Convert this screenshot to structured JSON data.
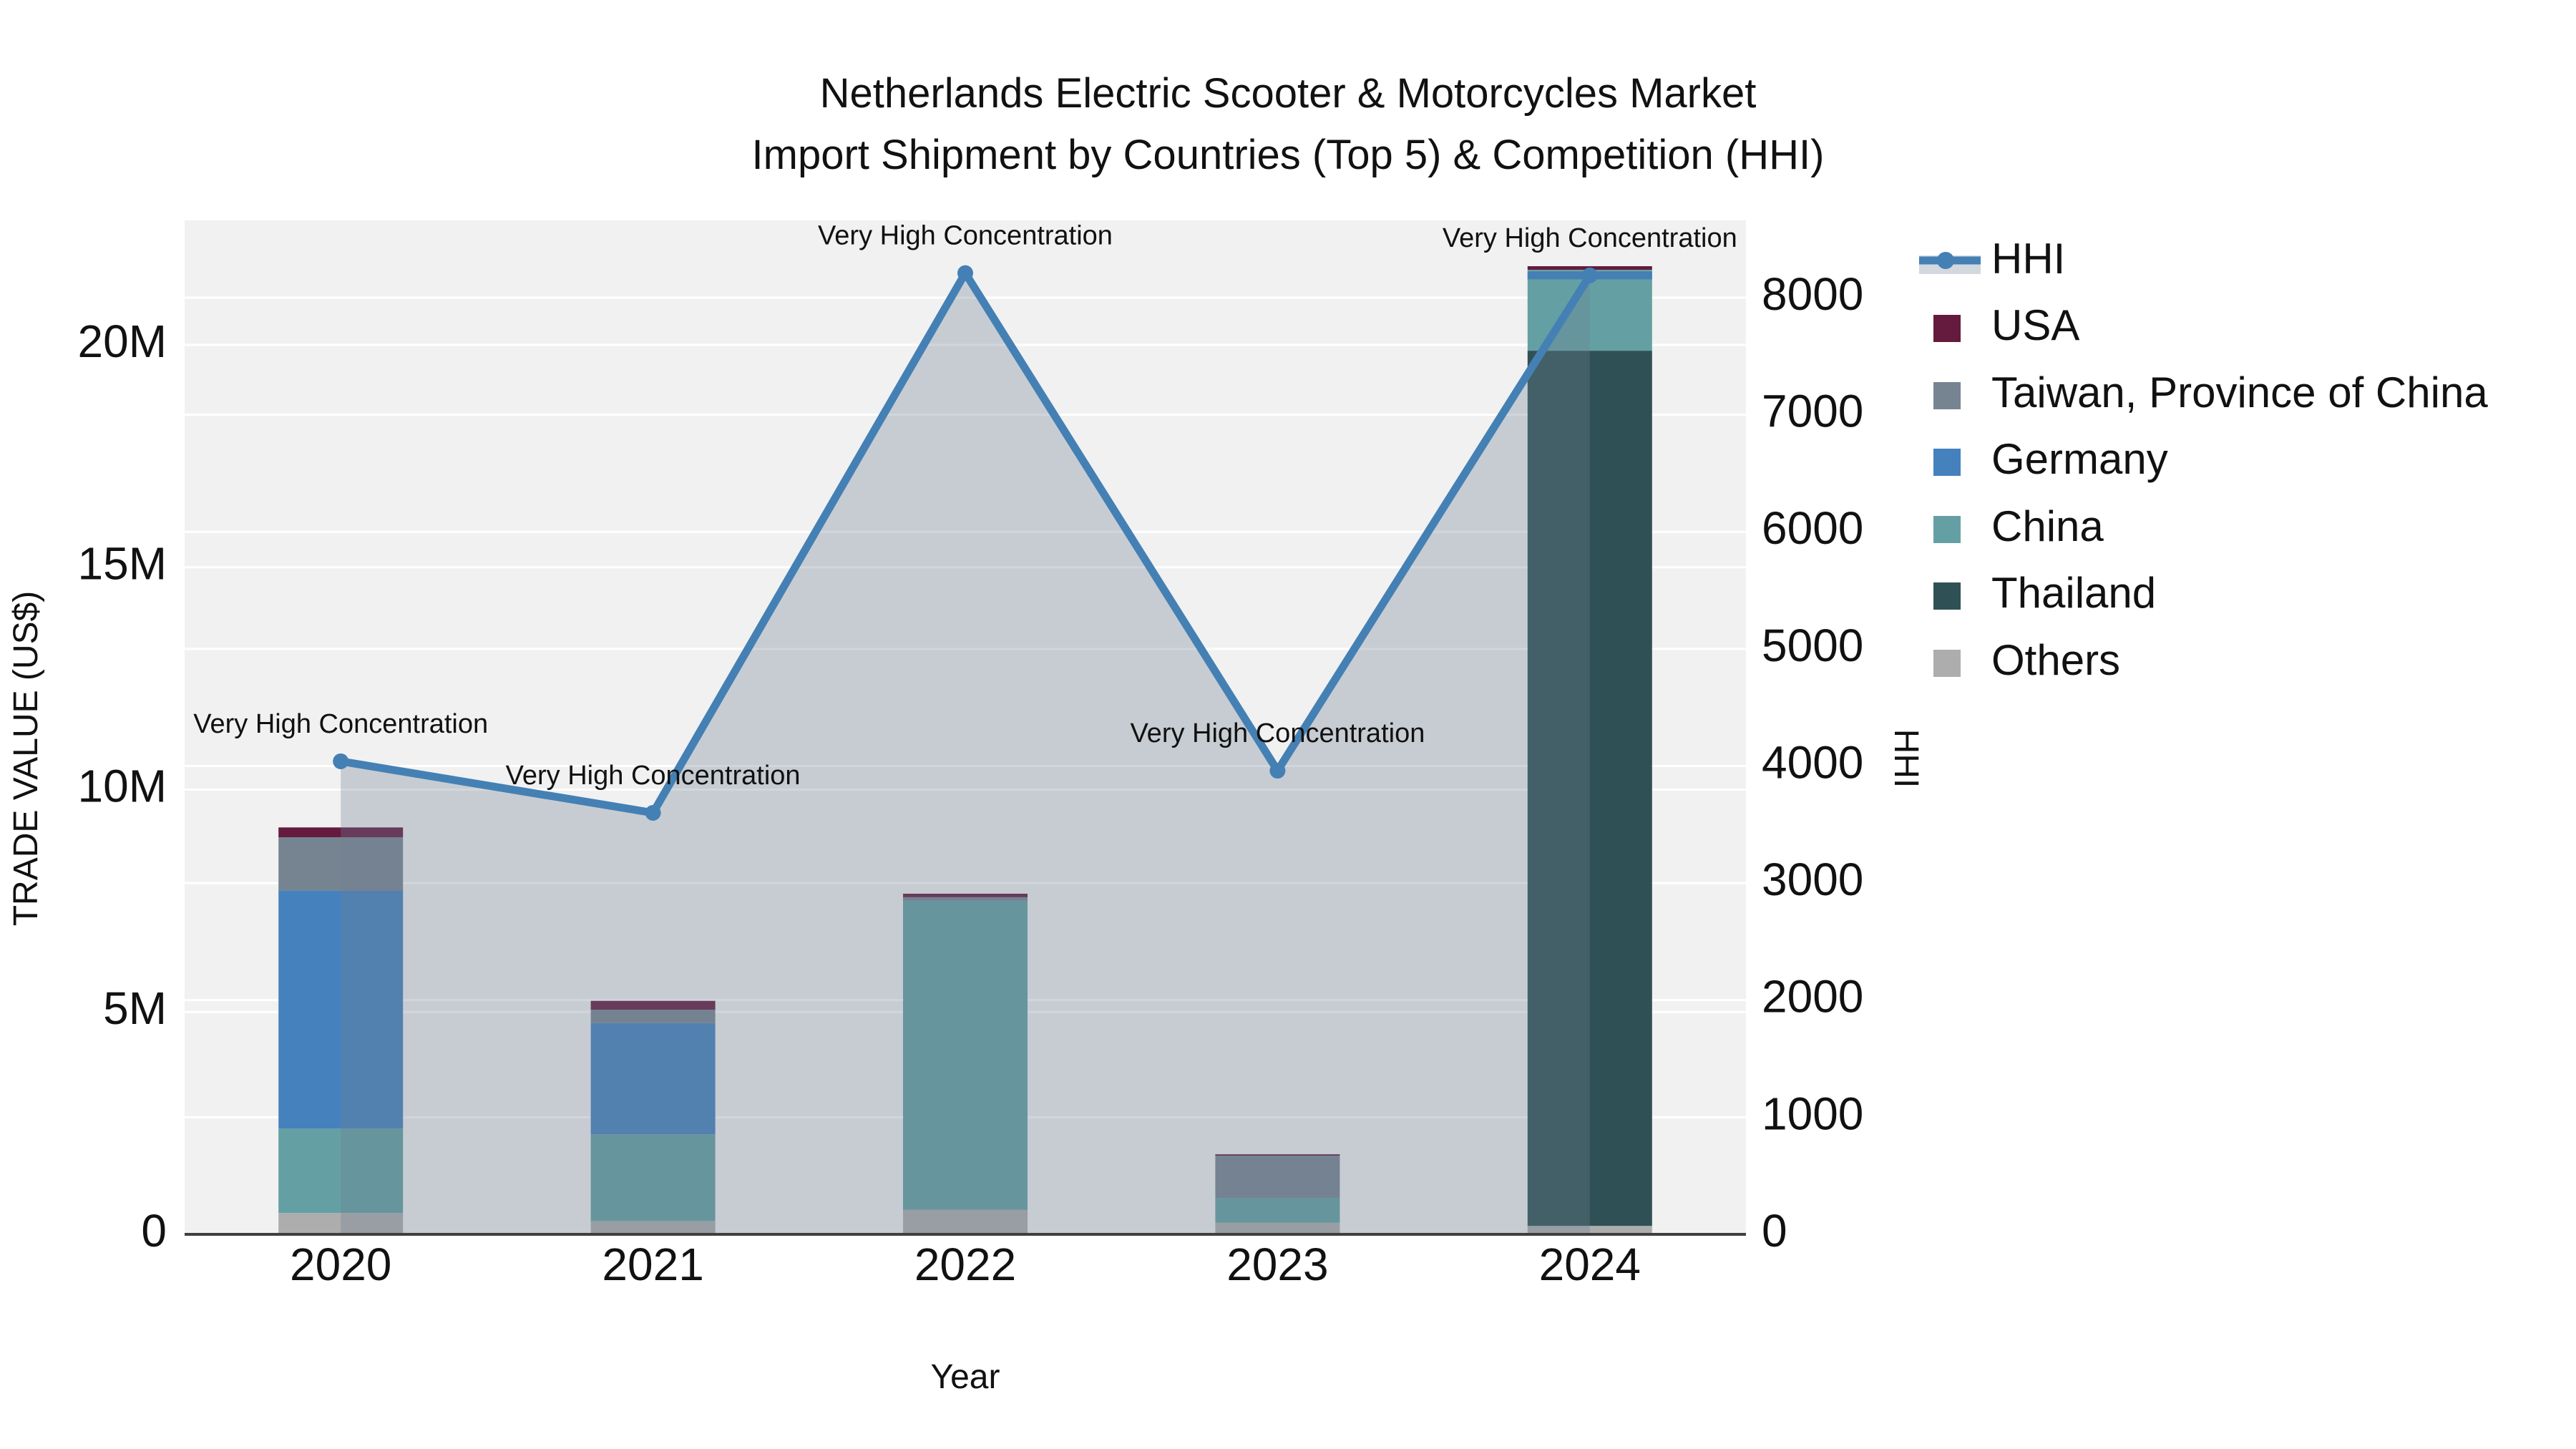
{
  "title_line1": "Netherlands Electric Scooter & Motorcycles Market",
  "title_line2": "Import Shipment by Countries (Top 5) & Competition (HHI)",
  "axes": {
    "x_title": "Year",
    "y_left_title": "TRADE VALUE (US$)",
    "y_right_title": "HHI",
    "y_left_ticks": [
      {
        "v": 0,
        "label": "0"
      },
      {
        "v": 5,
        "label": "5M"
      },
      {
        "v": 10,
        "label": "10M"
      },
      {
        "v": 15,
        "label": "15M"
      },
      {
        "v": 20,
        "label": "20M"
      }
    ],
    "y_right_ticks": [
      {
        "v": 0,
        "label": "0"
      },
      {
        "v": 1000,
        "label": "1000"
      },
      {
        "v": 2000,
        "label": "2000"
      },
      {
        "v": 3000,
        "label": "3000"
      },
      {
        "v": 4000,
        "label": "4000"
      },
      {
        "v": 5000,
        "label": "5000"
      },
      {
        "v": 6000,
        "label": "6000"
      },
      {
        "v": 7000,
        "label": "7000"
      },
      {
        "v": 8000,
        "label": "8000"
      }
    ]
  },
  "legend": {
    "items": [
      {
        "label": "HHI",
        "type": "line",
        "color": "#4480b4",
        "band": "#d3d8de"
      },
      {
        "label": "USA",
        "type": "swatch",
        "color": "#641b3e"
      },
      {
        "label": "Taiwan, Province of China",
        "type": "swatch",
        "color": "#768492"
      },
      {
        "label": "Germany",
        "type": "swatch",
        "color": "#4581bd"
      },
      {
        "label": "China",
        "type": "swatch",
        "color": "#64a0a3"
      },
      {
        "label": "Thailand",
        "type": "swatch",
        "color": "#2f5155"
      },
      {
        "label": "Others",
        "type": "swatch",
        "color": "#adadad"
      }
    ]
  },
  "chart_data": {
    "type": "bar+line",
    "title": "Netherlands Electric Scooter & Motorcycles Market Import Shipment by Countries (Top 5) & Competition (HHI)",
    "categories": [
      "2020",
      "2021",
      "2022",
      "2023",
      "2024"
    ],
    "xlabel": "Year",
    "ylabel_left": "TRADE VALUE (US$)",
    "ylabel_right": "HHI",
    "bar_value_unit": "USD millions",
    "ylim_left": [
      0,
      22.8
    ],
    "ylim_right": [
      0,
      8660
    ],
    "grid": true,
    "legend_position": "right",
    "stack_order_bottom_to_top": [
      "Others",
      "Thailand",
      "China",
      "Germany",
      "Taiwan, Province of China",
      "USA"
    ],
    "series": [
      {
        "name": "USA",
        "color": "#641b3e",
        "values": [
          0.22,
          0.2,
          0.08,
          0.03,
          0.08
        ]
      },
      {
        "name": "Taiwan, Province of China",
        "color": "#768492",
        "values": [
          1.2,
          0.3,
          0.08,
          0.95,
          0
        ]
      },
      {
        "name": "Germany",
        "color": "#4581bd",
        "values": [
          5.35,
          2.5,
          0,
          0,
          0
        ]
      },
      {
        "name": "China",
        "color": "#64a0a3",
        "values": [
          1.9,
          1.95,
          6.95,
          0.56,
          1.82
        ]
      },
      {
        "name": "Thailand",
        "color": "#2f5155",
        "values": [
          0,
          0,
          0,
          0,
          19.68
        ]
      },
      {
        "name": "Others",
        "color": "#adadad",
        "values": [
          0.48,
          0.3,
          0.55,
          0.26,
          0.19
        ]
      }
    ],
    "line": {
      "name": "HHI",
      "axis": "right",
      "color": "#4480b4",
      "area_fill": "rgba(113,128,147,0.32)",
      "values": [
        4040,
        3600,
        8210,
        3960,
        8190
      ]
    },
    "annotations": [
      "Very High Concentration",
      "Very High Concentration",
      "Very High Concentration",
      "Very High Concentration",
      "Very High Concentration"
    ]
  }
}
